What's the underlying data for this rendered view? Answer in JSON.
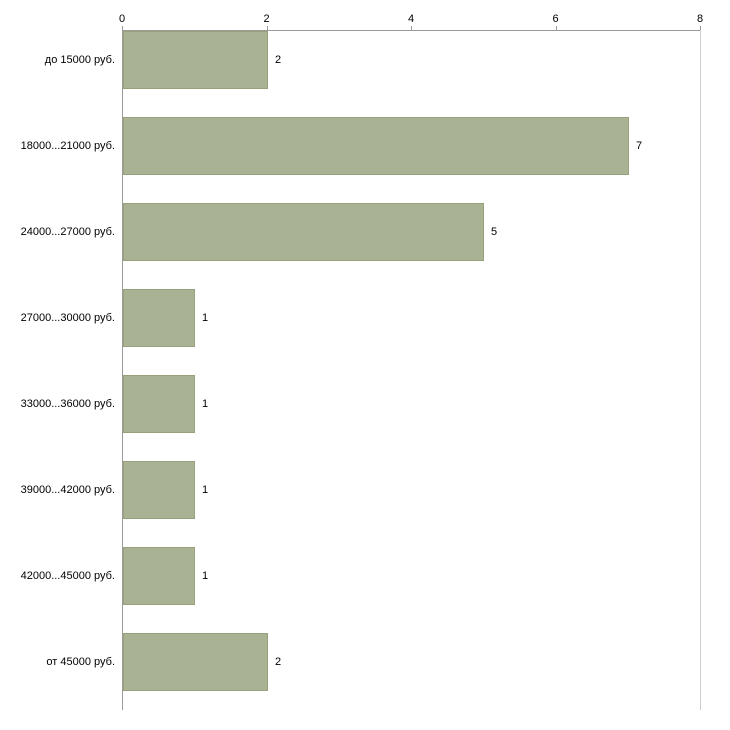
{
  "chart_data": {
    "type": "bar",
    "orientation": "horizontal",
    "title": "",
    "xlabel": "",
    "ylabel": "",
    "categories": [
      "до 15000 руб.",
      "18000...21000 руб.",
      "24000...27000 руб.",
      "27000...30000 руб.",
      "33000...36000 руб.",
      "39000...42000 руб.",
      "42000...45000 руб.",
      "от 45000 руб."
    ],
    "values": [
      2,
      7,
      5,
      1,
      1,
      1,
      1,
      2
    ],
    "xlim": [
      0,
      8
    ],
    "xticks": [
      0,
      2,
      4,
      6,
      8
    ],
    "xaxis_position": "top",
    "grid": false,
    "legend": false,
    "bar_color": "#a9b293",
    "bar_border_color": "#97a17c",
    "axis_color": "#9a9a9a",
    "text_color": "#000000",
    "background_color": "#ffffff"
  }
}
